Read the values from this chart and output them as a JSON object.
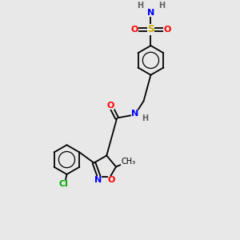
{
  "background_color": "#e8e8e8",
  "atom_colors": {
    "C": "#000000",
    "H": "#606060",
    "N": "#0000ff",
    "O": "#ff0000",
    "S": "#ccaa00",
    "Cl": "#00aa00"
  },
  "figsize": [
    3.0,
    3.0
  ],
  "dpi": 100
}
